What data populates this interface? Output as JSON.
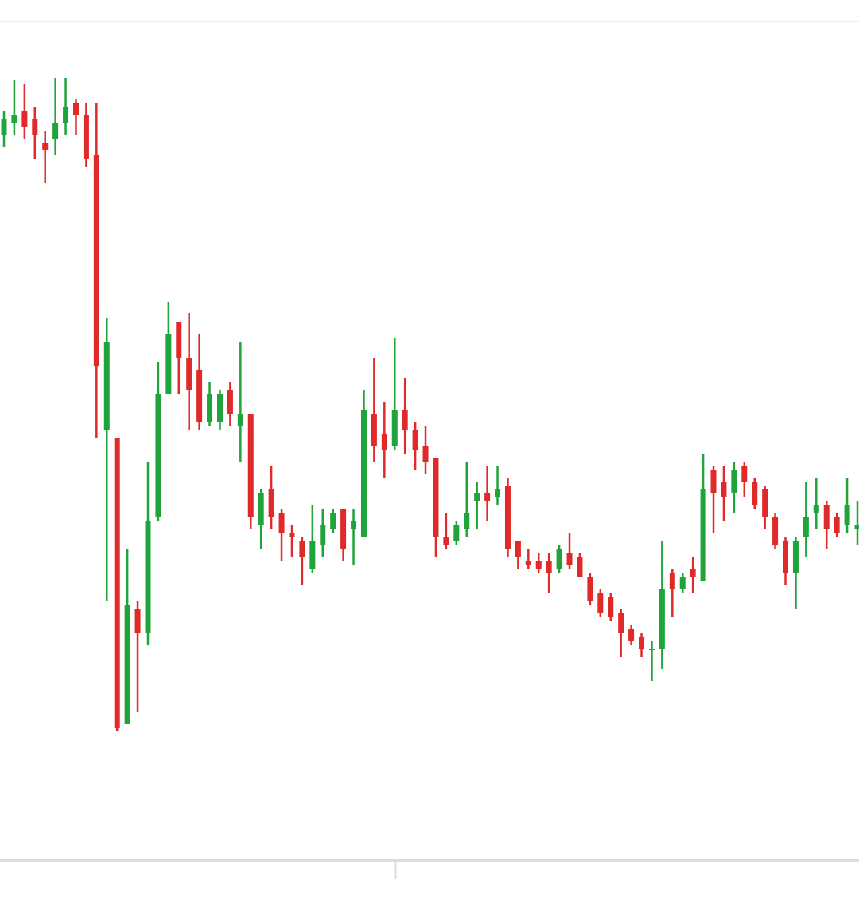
{
  "chart_data": {
    "type": "candlestick",
    "up_color": "#1ea43a",
    "down_color": "#e02a2a",
    "ylim": [
      0,
      105.2
    ],
    "open": [
      91.0,
      92.5,
      94.0,
      93.0,
      90.0,
      90.5,
      92.5,
      95.0,
      93.5,
      88.5,
      54.0,
      53.0,
      17.0,
      31.5,
      28.5,
      43.0,
      58.5,
      67.5,
      63.0,
      61.5,
      55.0,
      55.0,
      59.0,
      54.5,
      56.0,
      42.0,
      46.5,
      43.5,
      41.0,
      40.0,
      36.5,
      39.5,
      41.5,
      44.0,
      41.5,
      40.5,
      56.0,
      53.5,
      52.0,
      56.5,
      54.0,
      52.0,
      50.5,
      40.5,
      40.0,
      41.5,
      45.0,
      46.0,
      45.5,
      47.0,
      40.0,
      37.5,
      37.5,
      37.5,
      36.5,
      38.5,
      38.0,
      35.5,
      33.5,
      33.0,
      31.0,
      29.0,
      28.0,
      26.5,
      26.5,
      36.0,
      34.0,
      36.5,
      35.0,
      49.0,
      47.5,
      46.0,
      49.5,
      47.5,
      46.5,
      43.0,
      40.0,
      36.0,
      40.5,
      43.5,
      44.5,
      43.0,
      42.0,
      41.5
    ],
    "high": [
      94.0,
      98.0,
      97.5,
      94.5,
      91.5,
      98.2,
      98.2,
      95.5,
      95.0,
      95.0,
      68.0,
      53.0,
      39.0,
      32.5,
      50.0,
      62.5,
      70.0,
      67.5,
      68.7,
      66.0,
      60.0,
      59.0,
      60.0,
      65.0,
      56.0,
      46.5,
      49.5,
      44.0,
      42.0,
      40.5,
      44.5,
      44.0,
      44.0,
      44.0,
      44.0,
      59.0,
      63.0,
      57.5,
      65.5,
      60.5,
      55.0,
      54.5,
      50.5,
      43.5,
      42.5,
      50.0,
      47.5,
      49.5,
      49.5,
      48.0,
      40.0,
      39.0,
      38.5,
      38.5,
      39.5,
      41.0,
      38.5,
      36.0,
      34.0,
      33.5,
      31.5,
      29.5,
      28.5,
      27.5,
      40.0,
      36.5,
      36.0,
      38.0,
      51.0,
      49.5,
      49.5,
      50.0,
      50.0,
      48.0,
      47.0,
      43.5,
      40.5,
      40.5,
      47.5,
      48.0,
      45.0,
      43.5,
      48.0,
      45.0
    ],
    "low": [
      89.5,
      91.0,
      90.5,
      88.0,
      85.0,
      88.5,
      91.0,
      91.0,
      87.0,
      53.0,
      32.5,
      16.2,
      17.0,
      18.5,
      27.0,
      42.5,
      58.5,
      58.5,
      54.0,
      54.0,
      54.5,
      54.0,
      54.5,
      50.0,
      41.5,
      39.0,
      41.5,
      37.5,
      38.0,
      34.5,
      36.0,
      38.0,
      41.0,
      37.5,
      37.0,
      40.5,
      50.0,
      48.0,
      51.5,
      51.0,
      49.0,
      48.5,
      38.0,
      39.0,
      39.5,
      40.5,
      41.5,
      42.5,
      44.5,
      38.0,
      36.5,
      36.5,
      36.0,
      33.5,
      36.0,
      36.5,
      35.5,
      32.0,
      30.5,
      30.0,
      25.5,
      27.0,
      25.5,
      22.5,
      24.0,
      30.5,
      33.5,
      33.5,
      35.0,
      41.0,
      42.5,
      43.5,
      45.5,
      44.0,
      41.5,
      39.0,
      34.5,
      31.5,
      38.0,
      41.5,
      39.0,
      40.5,
      41.0,
      39.5
    ],
    "close": [
      93.0,
      93.5,
      92.0,
      91.0,
      89.2,
      92.5,
      94.5,
      93.5,
      88.0,
      62.0,
      65.0,
      16.5,
      32.0,
      28.5,
      42.5,
      58.5,
      66.0,
      63.0,
      59.0,
      55.0,
      58.5,
      58.5,
      56.0,
      56.0,
      43.0,
      46.0,
      43.0,
      41.0,
      40.5,
      38.0,
      40.0,
      42.0,
      43.5,
      39.0,
      42.5,
      56.5,
      52.0,
      51.5,
      56.5,
      54.0,
      51.5,
      50.0,
      40.5,
      39.5,
      42.0,
      43.5,
      46.0,
      45.0,
      46.5,
      39.0,
      38.0,
      37.0,
      36.5,
      36.0,
      39.0,
      37.0,
      35.5,
      32.5,
      31.0,
      30.5,
      28.5,
      27.5,
      26.5,
      26.5,
      34.0,
      34.0,
      35.5,
      35.5,
      46.5,
      46.0,
      45.5,
      49.0,
      47.5,
      44.5,
      43.0,
      39.5,
      36.0,
      40.0,
      43.0,
      44.5,
      41.5,
      41.0,
      44.5,
      42.0
    ]
  }
}
